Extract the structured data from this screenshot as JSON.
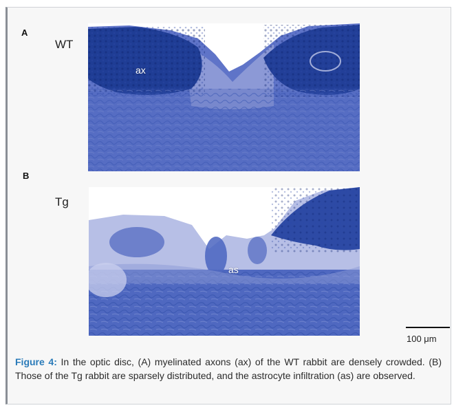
{
  "figure": {
    "panel_a": {
      "letter": "A",
      "group": "WT",
      "annotation": "ax"
    },
    "panel_b": {
      "letter": "B",
      "group": "Tg",
      "annotation": "as"
    },
    "scale_bar": {
      "label": "100 μm"
    },
    "caption": {
      "label": "Figure 4:",
      "text": " In the optic disc, (A) myelinated axons (ax) of the WT rabbit are densely crowded. (B) Those of the Tg rabbit are sparsely distributed, and the astrocyte infiltration (as) are observed."
    }
  },
  "colors": {
    "tissue_light": "#a9b3e0",
    "tissue_mid": "#5f74c8",
    "tissue_dark": "#1c3a8e",
    "caption_label": "#2a7bb9"
  }
}
